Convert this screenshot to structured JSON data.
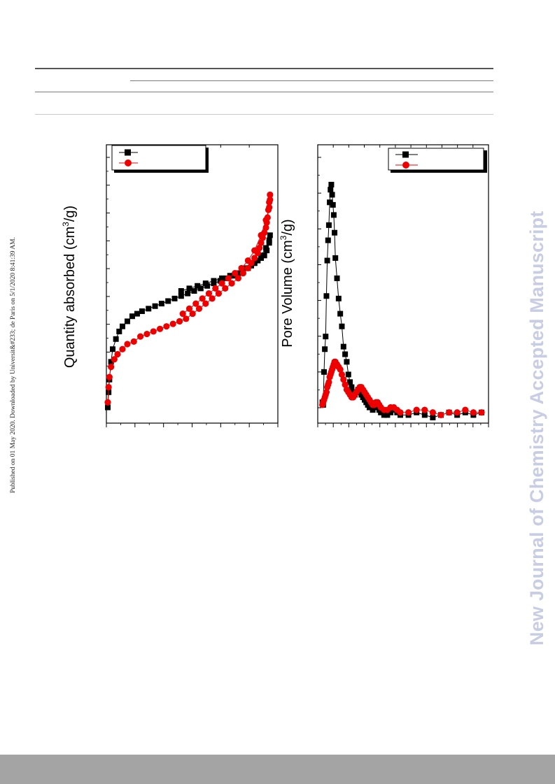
{
  "side_note": "Published on 01 May 2020. Downloaded by Universit&#233; de Paris on 5/1/2020 8:41:39 AM.",
  "watermark": "New Journal of Chemistry Accepted Manuscript",
  "colors": {
    "series1": "#000000",
    "series2": "#ee0000",
    "watermark": "#c9cde3",
    "footer": "#a4a4a4"
  },
  "chart_data": [
    {
      "type": "scatter",
      "ylabel_main": "Quantity absorbed (cm",
      "ylabel_sup": "3",
      "ylabel_tail": "/g)",
      "xlim": [
        0,
        1.0
      ],
      "ylim": [
        0,
        100
      ],
      "series": [
        {
          "marker": "square",
          "color": "#000000",
          "x": [
            0.0,
            0.005,
            0.01,
            0.02,
            0.03,
            0.05,
            0.07,
            0.09,
            0.12,
            0.15,
            0.18,
            0.21,
            0.25,
            0.29,
            0.33,
            0.37,
            0.41,
            0.45,
            0.49,
            0.53,
            0.57,
            0.61,
            0.65,
            0.69,
            0.73,
            0.77,
            0.8,
            0.83,
            0.86,
            0.88,
            0.9,
            0.92,
            0.94,
            0.96,
            0.975,
            0.99,
            0.995,
            0.99,
            0.97,
            0.94,
            0.9,
            0.85,
            0.8,
            0.75,
            0.7,
            0.65,
            0.6,
            0.55,
            0.5,
            0.45
          ],
          "y": [
            4,
            10,
            15,
            22,
            27,
            31,
            34,
            36,
            38,
            40,
            41,
            42,
            43,
            44,
            45,
            46,
            47,
            48,
            49,
            50,
            51,
            52,
            53,
            54,
            55,
            56,
            57,
            58,
            59,
            60,
            61,
            62,
            63,
            64,
            66,
            69,
            72,
            70,
            67,
            64,
            61,
            59,
            57,
            56,
            55,
            54,
            53,
            52,
            51,
            50
          ]
        },
        {
          "marker": "circle",
          "color": "#ee0000",
          "x": [
            0.0,
            0.005,
            0.01,
            0.02,
            0.04,
            0.06,
            0.09,
            0.12,
            0.16,
            0.2,
            0.24,
            0.28,
            0.32,
            0.36,
            0.4,
            0.44,
            0.48,
            0.52,
            0.56,
            0.6,
            0.64,
            0.68,
            0.72,
            0.76,
            0.8,
            0.83,
            0.86,
            0.88,
            0.9,
            0.92,
            0.93,
            0.94,
            0.95,
            0.96,
            0.97,
            0.975,
            0.98,
            0.985,
            0.99,
            0.995,
            0.995,
            0.99,
            0.97,
            0.94,
            0.9,
            0.86,
            0.82,
            0.78,
            0.74,
            0.7,
            0.66,
            0.62,
            0.58,
            0.54,
            0.5,
            0.46
          ],
          "y": [
            6,
            12,
            16,
            20,
            23,
            25,
            27,
            29,
            30,
            32,
            33,
            34,
            35,
            36,
            37,
            38,
            39,
            41,
            43,
            45,
            47,
            49,
            51,
            53,
            55,
            57,
            59,
            61,
            63,
            65,
            67,
            69,
            71,
            73,
            75,
            77,
            79,
            82,
            85,
            88,
            86,
            83,
            78,
            72,
            66,
            62,
            59,
            57,
            55,
            53,
            51,
            49,
            47,
            45,
            43,
            41
          ]
        }
      ]
    },
    {
      "type": "scatter",
      "ylabel_main": "Pore Volume (cm",
      "ylabel_sup": "3",
      "ylabel_tail": "/g)",
      "xlim": [
        0,
        100
      ],
      "ylim": [
        0,
        100
      ],
      "series": [
        {
          "marker": "square",
          "color": "#000000",
          "x": [
            2,
            2.5,
            3,
            3.5,
            4,
            4.5,
            5,
            5.5,
            6,
            6.5,
            7,
            7.5,
            8,
            8.5,
            9,
            9.5,
            10,
            11,
            12,
            13,
            14,
            15,
            16,
            17,
            18,
            19,
            20,
            21,
            22,
            23,
            24,
            25,
            26,
            27,
            28,
            29,
            30,
            31,
            32,
            33,
            34,
            35,
            36,
            37,
            38,
            40,
            42,
            44,
            46,
            48,
            50,
            55,
            60,
            65,
            70,
            75,
            80,
            85,
            90,
            95,
            100
          ],
          "y": [
            6,
            5,
            18,
            27,
            32,
            48,
            62,
            70,
            76,
            85,
            90,
            92,
            88,
            84,
            80,
            73,
            63,
            55,
            47,
            41,
            36,
            28,
            25,
            22,
            17,
            14,
            12,
            10,
            9,
            10,
            11,
            10,
            9,
            8,
            7,
            6,
            5,
            4,
            4,
            3,
            4,
            5,
            4,
            3,
            2,
            1,
            1,
            2,
            3,
            2,
            1,
            1,
            2,
            1,
            0,
            1,
            2,
            1,
            2,
            1,
            2
          ]
        },
        {
          "marker": "circle",
          "color": "#ee0000",
          "x": [
            2,
            2.5,
            3,
            3.5,
            4,
            4.5,
            5,
            5.5,
            6,
            6.5,
            7,
            7.5,
            8,
            8.5,
            9,
            9.5,
            10,
            11,
            12,
            13,
            14,
            15,
            16,
            17,
            18,
            19,
            20,
            21,
            22,
            23,
            24,
            25,
            26,
            27,
            28,
            29,
            30,
            31,
            32,
            33,
            34,
            35,
            36,
            37,
            38,
            40,
            42,
            44,
            46,
            48,
            50,
            55,
            60,
            65,
            70,
            75,
            80,
            85,
            90,
            95,
            100
          ],
          "y": [
            5,
            6,
            7,
            8,
            9,
            10,
            12,
            13,
            14,
            16,
            17,
            18,
            19,
            20,
            21,
            22,
            22,
            21,
            20,
            19,
            17,
            15,
            13,
            11,
            10,
            9,
            8,
            8,
            9,
            10,
            11,
            12,
            12,
            11,
            10,
            9,
            8,
            7,
            6,
            5,
            5,
            6,
            6,
            5,
            4,
            3,
            3,
            4,
            4,
            3,
            2,
            2,
            3,
            3,
            2,
            1,
            2,
            2,
            3,
            2,
            2
          ]
        }
      ]
    }
  ]
}
